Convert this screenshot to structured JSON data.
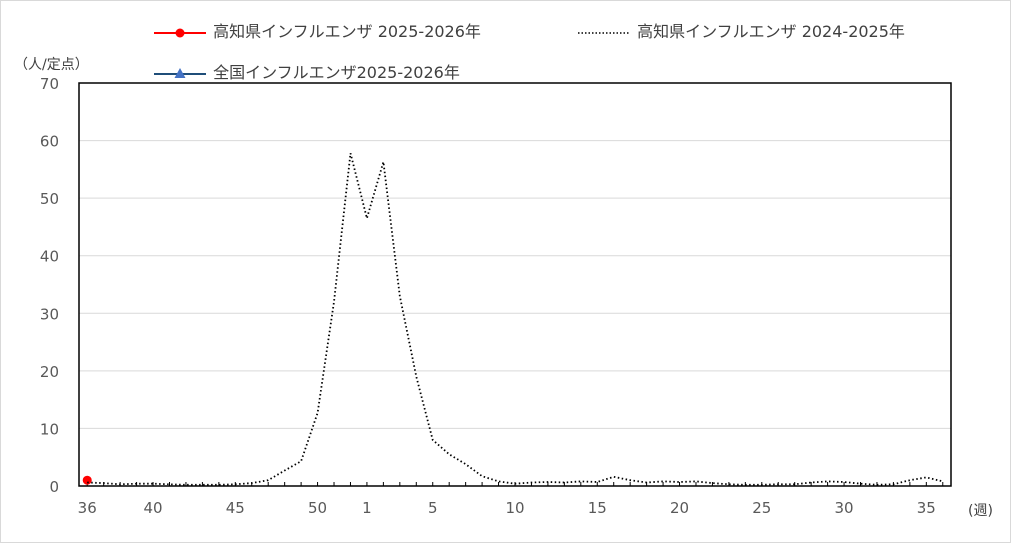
{
  "chart_data": {
    "type": "line",
    "unit_y": "（人/定点）",
    "unit_x": "(週)",
    "ylim": [
      0,
      70
    ],
    "y_ticks": [
      0,
      10,
      20,
      30,
      40,
      50,
      60,
      70
    ],
    "x_tick_labels": [
      "36",
      "40",
      "45",
      "50",
      "1",
      "5",
      "10",
      "15",
      "20",
      "25",
      "30",
      "35"
    ],
    "x_tick_positions": [
      0,
      4,
      9,
      14,
      17,
      21,
      26,
      31,
      36,
      41,
      46,
      51
    ],
    "grid": true,
    "legend": "top",
    "series": [
      {
        "name": "高知県インフルエンザ 2025-2026年",
        "color": "#ff0000",
        "style": "solid",
        "marker": "circle",
        "points": [
          [
            0,
            1.0
          ]
        ]
      },
      {
        "name": "高知県インフルエンザ 2024-2025年",
        "color": "#000000",
        "style": "dotted",
        "marker": "none",
        "points": [
          [
            0,
            0.6
          ],
          [
            1,
            0.5
          ],
          [
            2,
            0.3
          ],
          [
            3,
            0.4
          ],
          [
            4,
            0.4
          ],
          [
            5,
            0.3
          ],
          [
            6,
            0.2
          ],
          [
            7,
            0.2
          ],
          [
            8,
            0.2
          ],
          [
            9,
            0.3
          ],
          [
            10,
            0.5
          ],
          [
            11,
            1.0
          ],
          [
            12,
            2.7
          ],
          [
            13,
            4.3
          ],
          [
            14,
            12.7
          ],
          [
            15,
            32.0
          ],
          [
            16,
            57.8
          ],
          [
            17,
            46.5
          ],
          [
            18,
            56.3
          ],
          [
            19,
            33.0
          ],
          [
            20,
            19.0
          ],
          [
            21,
            8.0
          ],
          [
            22,
            5.5
          ],
          [
            23,
            3.8
          ],
          [
            24,
            1.7
          ],
          [
            25,
            0.8
          ],
          [
            26,
            0.4
          ],
          [
            27,
            0.6
          ],
          [
            28,
            0.7
          ],
          [
            29,
            0.6
          ],
          [
            30,
            0.8
          ],
          [
            31,
            0.7
          ],
          [
            32,
            1.6
          ],
          [
            33,
            1.0
          ],
          [
            34,
            0.6
          ],
          [
            35,
            0.8
          ],
          [
            36,
            0.7
          ],
          [
            37,
            0.8
          ],
          [
            38,
            0.5
          ],
          [
            39,
            0.3
          ],
          [
            40,
            0.2
          ],
          [
            41,
            0.2
          ],
          [
            42,
            0.3
          ],
          [
            43,
            0.3
          ],
          [
            44,
            0.6
          ],
          [
            45,
            0.8
          ],
          [
            46,
            0.7
          ],
          [
            47,
            0.4
          ],
          [
            48,
            0.2
          ],
          [
            49,
            0.3
          ],
          [
            50,
            1.0
          ],
          [
            51,
            1.5
          ],
          [
            52,
            0.8
          ]
        ]
      },
      {
        "name": "全国インフルエンザ2025-2026年",
        "color": "#1f4e79",
        "style": "solid",
        "marker": "triangle",
        "points": []
      }
    ]
  }
}
